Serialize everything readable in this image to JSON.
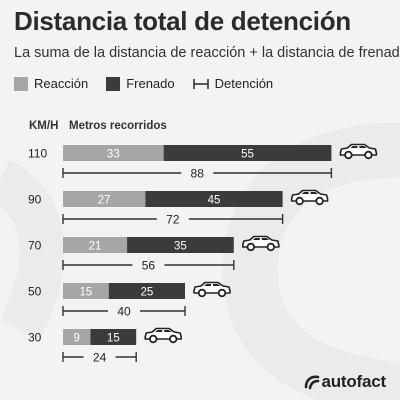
{
  "title": "Distancia total de detención",
  "subtitle": "La suma de la distancia de reacción + la distancia de frenado",
  "legend": {
    "reaccion": "Reacción",
    "frenado": "Frenado",
    "detencion": "Detención"
  },
  "headers": {
    "speed": "KM/H",
    "meters": "Metros recorridos"
  },
  "brand": "autofact",
  "colors": {
    "reaccion": "#a6a6a6",
    "frenado": "#3b3b3b",
    "background": "#f3f3f3"
  },
  "chart_data": {
    "type": "bar",
    "orientation": "horizontal",
    "stacked": true,
    "categories": [
      "110",
      "90",
      "70",
      "50",
      "30"
    ],
    "series": [
      {
        "name": "Reacción",
        "values": [
          33,
          27,
          21,
          15,
          9
        ]
      },
      {
        "name": "Frenado",
        "values": [
          55,
          45,
          35,
          25,
          15
        ]
      }
    ],
    "totals": {
      "name": "Detención",
      "values": [
        88,
        72,
        56,
        40,
        24
      ]
    },
    "xlabel": "Metros recorridos",
    "ylabel": "KM/H",
    "grid": false,
    "legend_position": "top-left"
  }
}
